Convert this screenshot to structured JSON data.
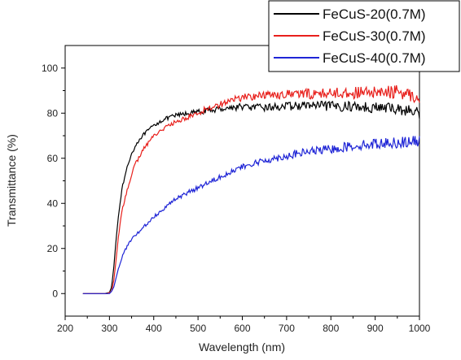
{
  "chart_data": {
    "type": "line",
    "title": "",
    "xlabel": "Wavelength (nm)",
    "ylabel": "Transmittance (%)",
    "xlim": [
      200,
      1000
    ],
    "ylim": [
      -10,
      110
    ],
    "xticks": [
      200,
      300,
      400,
      500,
      600,
      700,
      800,
      900,
      1000
    ],
    "yticks": [
      0,
      20,
      40,
      60,
      80,
      100
    ],
    "grid": false,
    "legend_position": "top-right",
    "series": [
      {
        "name": "FeCuS-20(0.7M)",
        "color": "#000000",
        "noise": 1.4,
        "x": [
          240,
          290,
          300,
          305,
          310,
          315,
          320,
          325,
          330,
          340,
          350,
          360,
          370,
          380,
          400,
          420,
          450,
          480,
          500,
          520,
          550,
          580,
          600,
          620,
          650,
          700,
          750,
          800,
          850,
          900,
          950,
          1000
        ],
        "y": [
          0,
          0,
          0.5,
          3,
          12,
          24,
          34,
          42,
          48,
          56,
          62,
          66,
          69,
          71,
          74.5,
          77,
          79,
          80,
          80.5,
          81,
          82,
          82.5,
          83,
          82.5,
          82.5,
          83,
          83.5,
          83,
          83,
          82.5,
          82,
          80
        ]
      },
      {
        "name": "FeCuS-30(0.7M)",
        "color": "#e8201c",
        "noise": 1.6,
        "x": [
          240,
          295,
          305,
          310,
          315,
          320,
          325,
          330,
          340,
          350,
          360,
          380,
          400,
          420,
          450,
          480,
          500,
          520,
          550,
          580,
          600,
          650,
          700,
          750,
          800,
          850,
          900,
          950,
          1000
        ],
        "y": [
          0,
          0,
          1,
          6,
          15,
          25,
          32,
          38,
          46,
          53,
          58,
          65,
          70,
          73,
          76,
          78.5,
          80,
          82,
          84,
          86,
          87,
          88,
          88.5,
          88.5,
          89,
          89,
          89,
          89.5,
          87
        ]
      },
      {
        "name": "FeCuS-40(0.7M)",
        "color": "#1f25d6",
        "noise": 1.3,
        "x": [
          240,
          300,
          305,
          310,
          315,
          320,
          330,
          340,
          350,
          370,
          400,
          430,
          450,
          480,
          500,
          550,
          600,
          650,
          700,
          750,
          800,
          850,
          900,
          950,
          1000
        ],
        "y": [
          0,
          0,
          1,
          3,
          7,
          11,
          17,
          21,
          24,
          28,
          34,
          39,
          42,
          45,
          47,
          52,
          56,
          59,
          61,
          63,
          64,
          65.5,
          66.5,
          67,
          67.5
        ]
      }
    ]
  }
}
